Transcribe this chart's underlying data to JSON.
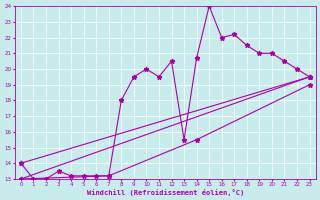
{
  "xlabel": "Windchill (Refroidissement éolien,°C)",
  "background_color": "#c8ecec",
  "line_color": "#aa00aa",
  "grid_color": "#ffffff",
  "xlim": [
    -0.5,
    23.5
  ],
  "ylim": [
    13,
    24
  ],
  "xticks": [
    0,
    1,
    2,
    3,
    4,
    5,
    6,
    7,
    8,
    9,
    10,
    11,
    12,
    13,
    14,
    15,
    16,
    17,
    18,
    19,
    20,
    21,
    22,
    23
  ],
  "yticks": [
    13,
    14,
    15,
    16,
    17,
    18,
    19,
    20,
    21,
    22,
    23,
    24
  ],
  "series1_x": [
    0,
    1,
    2,
    3,
    4,
    5,
    6,
    7,
    8,
    9,
    10,
    11,
    12,
    13,
    14,
    15,
    16,
    17,
    18,
    19,
    20,
    21,
    22,
    23
  ],
  "series1_y": [
    14,
    13,
    13,
    13.5,
    13.2,
    13.2,
    13.2,
    13.2,
    18,
    19.5,
    20,
    19.5,
    20.5,
    15.5,
    20.7,
    24,
    22,
    22.2,
    21.5,
    21,
    21,
    20.5,
    20,
    19.5
  ],
  "series2_x": [
    0,
    23
  ],
  "series2_y": [
    13,
    19.5
  ],
  "series3_x": [
    0,
    23
  ],
  "series3_y": [
    14,
    19.5
  ],
  "series4_x": [
    0,
    7,
    14,
    23
  ],
  "series4_y": [
    13,
    13.2,
    15.5,
    19.0
  ],
  "marker": "*",
  "markersize": 3.5,
  "linewidth": 0.8
}
